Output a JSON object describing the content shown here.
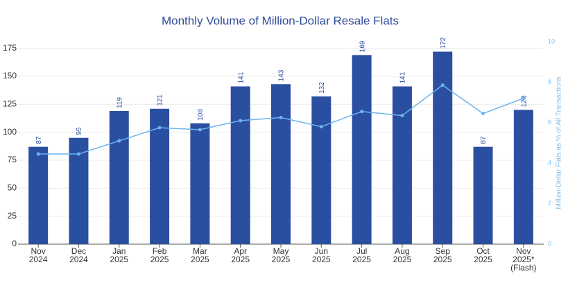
{
  "chart_data": {
    "type": "bar",
    "title": "Monthly Volume of Million-Dollar Resale Flats",
    "categories": [
      [
        "Nov",
        "2024"
      ],
      [
        "Dec",
        "2024"
      ],
      [
        "Jan",
        "2025"
      ],
      [
        "Feb",
        "2025"
      ],
      [
        "Mar",
        "2025"
      ],
      [
        "Apr",
        "2025"
      ],
      [
        "May",
        "2025"
      ],
      [
        "Jun",
        "2025"
      ],
      [
        "Jul",
        "2025"
      ],
      [
        "Aug",
        "2025"
      ],
      [
        "Sep",
        "2025"
      ],
      [
        "Oct",
        "2025"
      ],
      [
        "Nov",
        "2025*",
        "(Flash)"
      ]
    ],
    "series": [
      {
        "type": "bar",
        "color": "#2a4fa0",
        "values": [
          87,
          95,
          119,
          121,
          108,
          141,
          143,
          132,
          169,
          141,
          172,
          87,
          120
        ]
      },
      {
        "type": "line",
        "axis": "y2",
        "color": "#6cb4ee",
        "values": [
          4.45,
          4.45,
          5.1,
          5.75,
          5.65,
          6.1,
          6.25,
          5.8,
          6.55,
          6.35,
          7.85,
          6.45,
          7.2
        ]
      }
    ],
    "ylim": [
      0,
      181
    ],
    "yticks": [
      0,
      25,
      50,
      75,
      100,
      125,
      150,
      175
    ],
    "y2lim": [
      0,
      10
    ],
    "y2ticks": [
      0,
      2,
      4,
      6,
      8,
      10
    ],
    "y2label": "Million-Dollar Flats as % of All Transactions",
    "grid": true
  }
}
